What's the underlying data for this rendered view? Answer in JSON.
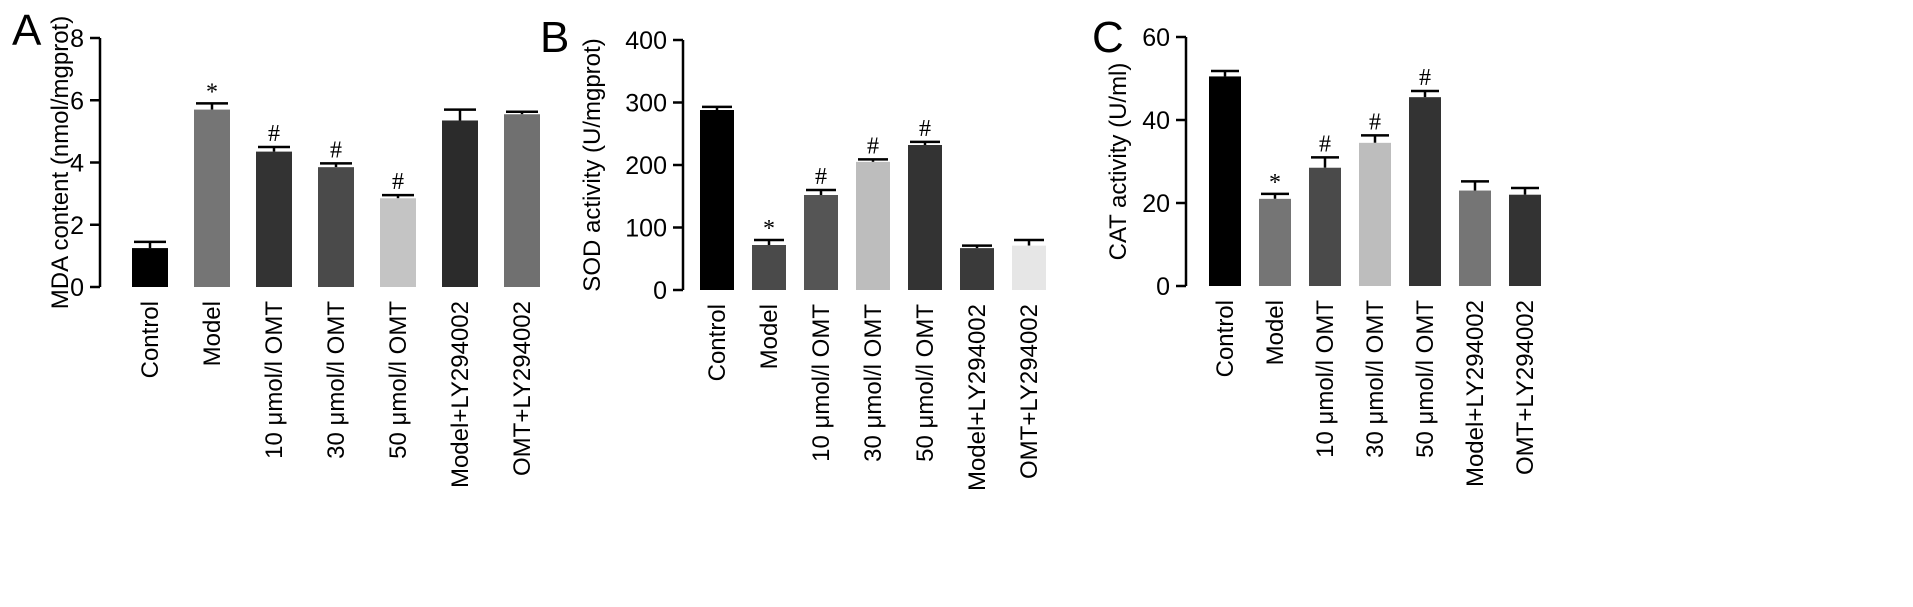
{
  "chart_data": [
    {
      "type": "bar",
      "panel": "A",
      "title": "",
      "xlabel": "",
      "ylabel": "MDA content  (nmol/mgprot)",
      "ylim": [
        0,
        8
      ],
      "yticks": [
        0,
        2,
        4,
        6,
        8
      ],
      "categories": [
        "Control",
        "Model",
        "10 μmol/l OMT",
        "30 μmol/l OMT",
        "50 μmol/l OMT",
        "Model+LY294002",
        "OMT+LY294002"
      ],
      "values": [
        1.25,
        5.7,
        4.35,
        3.85,
        2.85,
        5.35,
        5.55
      ],
      "errors": [
        0.2,
        0.2,
        0.15,
        0.12,
        0.1,
        0.35,
        0.08
      ],
      "colors": [
        "#000000",
        "#757575",
        "#333333",
        "#4a4a4a",
        "#c4c4c4",
        "#2b2b2b",
        "#707070"
      ],
      "marks": [
        "",
        "*",
        "#",
        "#",
        "#",
        "",
        ""
      ],
      "grid": false,
      "legend": "none"
    },
    {
      "type": "bar",
      "panel": "B",
      "title": "",
      "xlabel": "",
      "ylabel": "SOD activity  (U/mgprot)",
      "ylim": [
        0,
        400
      ],
      "yticks": [
        0,
        100,
        200,
        300,
        400
      ],
      "categories": [
        "Control",
        "Model",
        "10 μmol/l OMT",
        "30 μmol/l OMT",
        "50 μmol/l OMT",
        "Model+LY294002",
        "OMT+LY294002"
      ],
      "values": [
        288,
        72,
        152,
        205,
        232,
        67,
        71
      ],
      "errors": [
        5,
        8,
        8,
        4,
        5,
        4,
        9
      ],
      "colors": [
        "#000000",
        "#4a4a4a",
        "#555555",
        "#bdbdbd",
        "#333333",
        "#3a3a3a",
        "#e6e6e6"
      ],
      "marks": [
        "",
        "*",
        "#",
        "#",
        "#",
        "",
        ""
      ],
      "grid": false,
      "legend": "none"
    },
    {
      "type": "bar",
      "panel": "C",
      "title": "",
      "xlabel": "",
      "ylabel": "CAT activity  (U/ml)",
      "ylim": [
        0,
        60
      ],
      "yticks": [
        0,
        20,
        40,
        60
      ],
      "categories": [
        "Control",
        "Model",
        "10 μmol/l OMT",
        "30 μmol/l OMT",
        "50 μmol/l OMT",
        "Model+LY294002",
        "OMT+LY294002"
      ],
      "values": [
        50.5,
        21,
        28.5,
        34.5,
        45.5,
        23,
        22
      ],
      "errors": [
        1.3,
        1.2,
        2.5,
        1.8,
        1.5,
        2.2,
        1.6
      ],
      "colors": [
        "#000000",
        "#757575",
        "#4a4a4a",
        "#bdbdbd",
        "#333333",
        "#757575",
        "#333333"
      ],
      "marks": [
        "",
        "*",
        "#",
        "#",
        "#",
        "",
        ""
      ],
      "grid": false,
      "legend": "none"
    }
  ]
}
